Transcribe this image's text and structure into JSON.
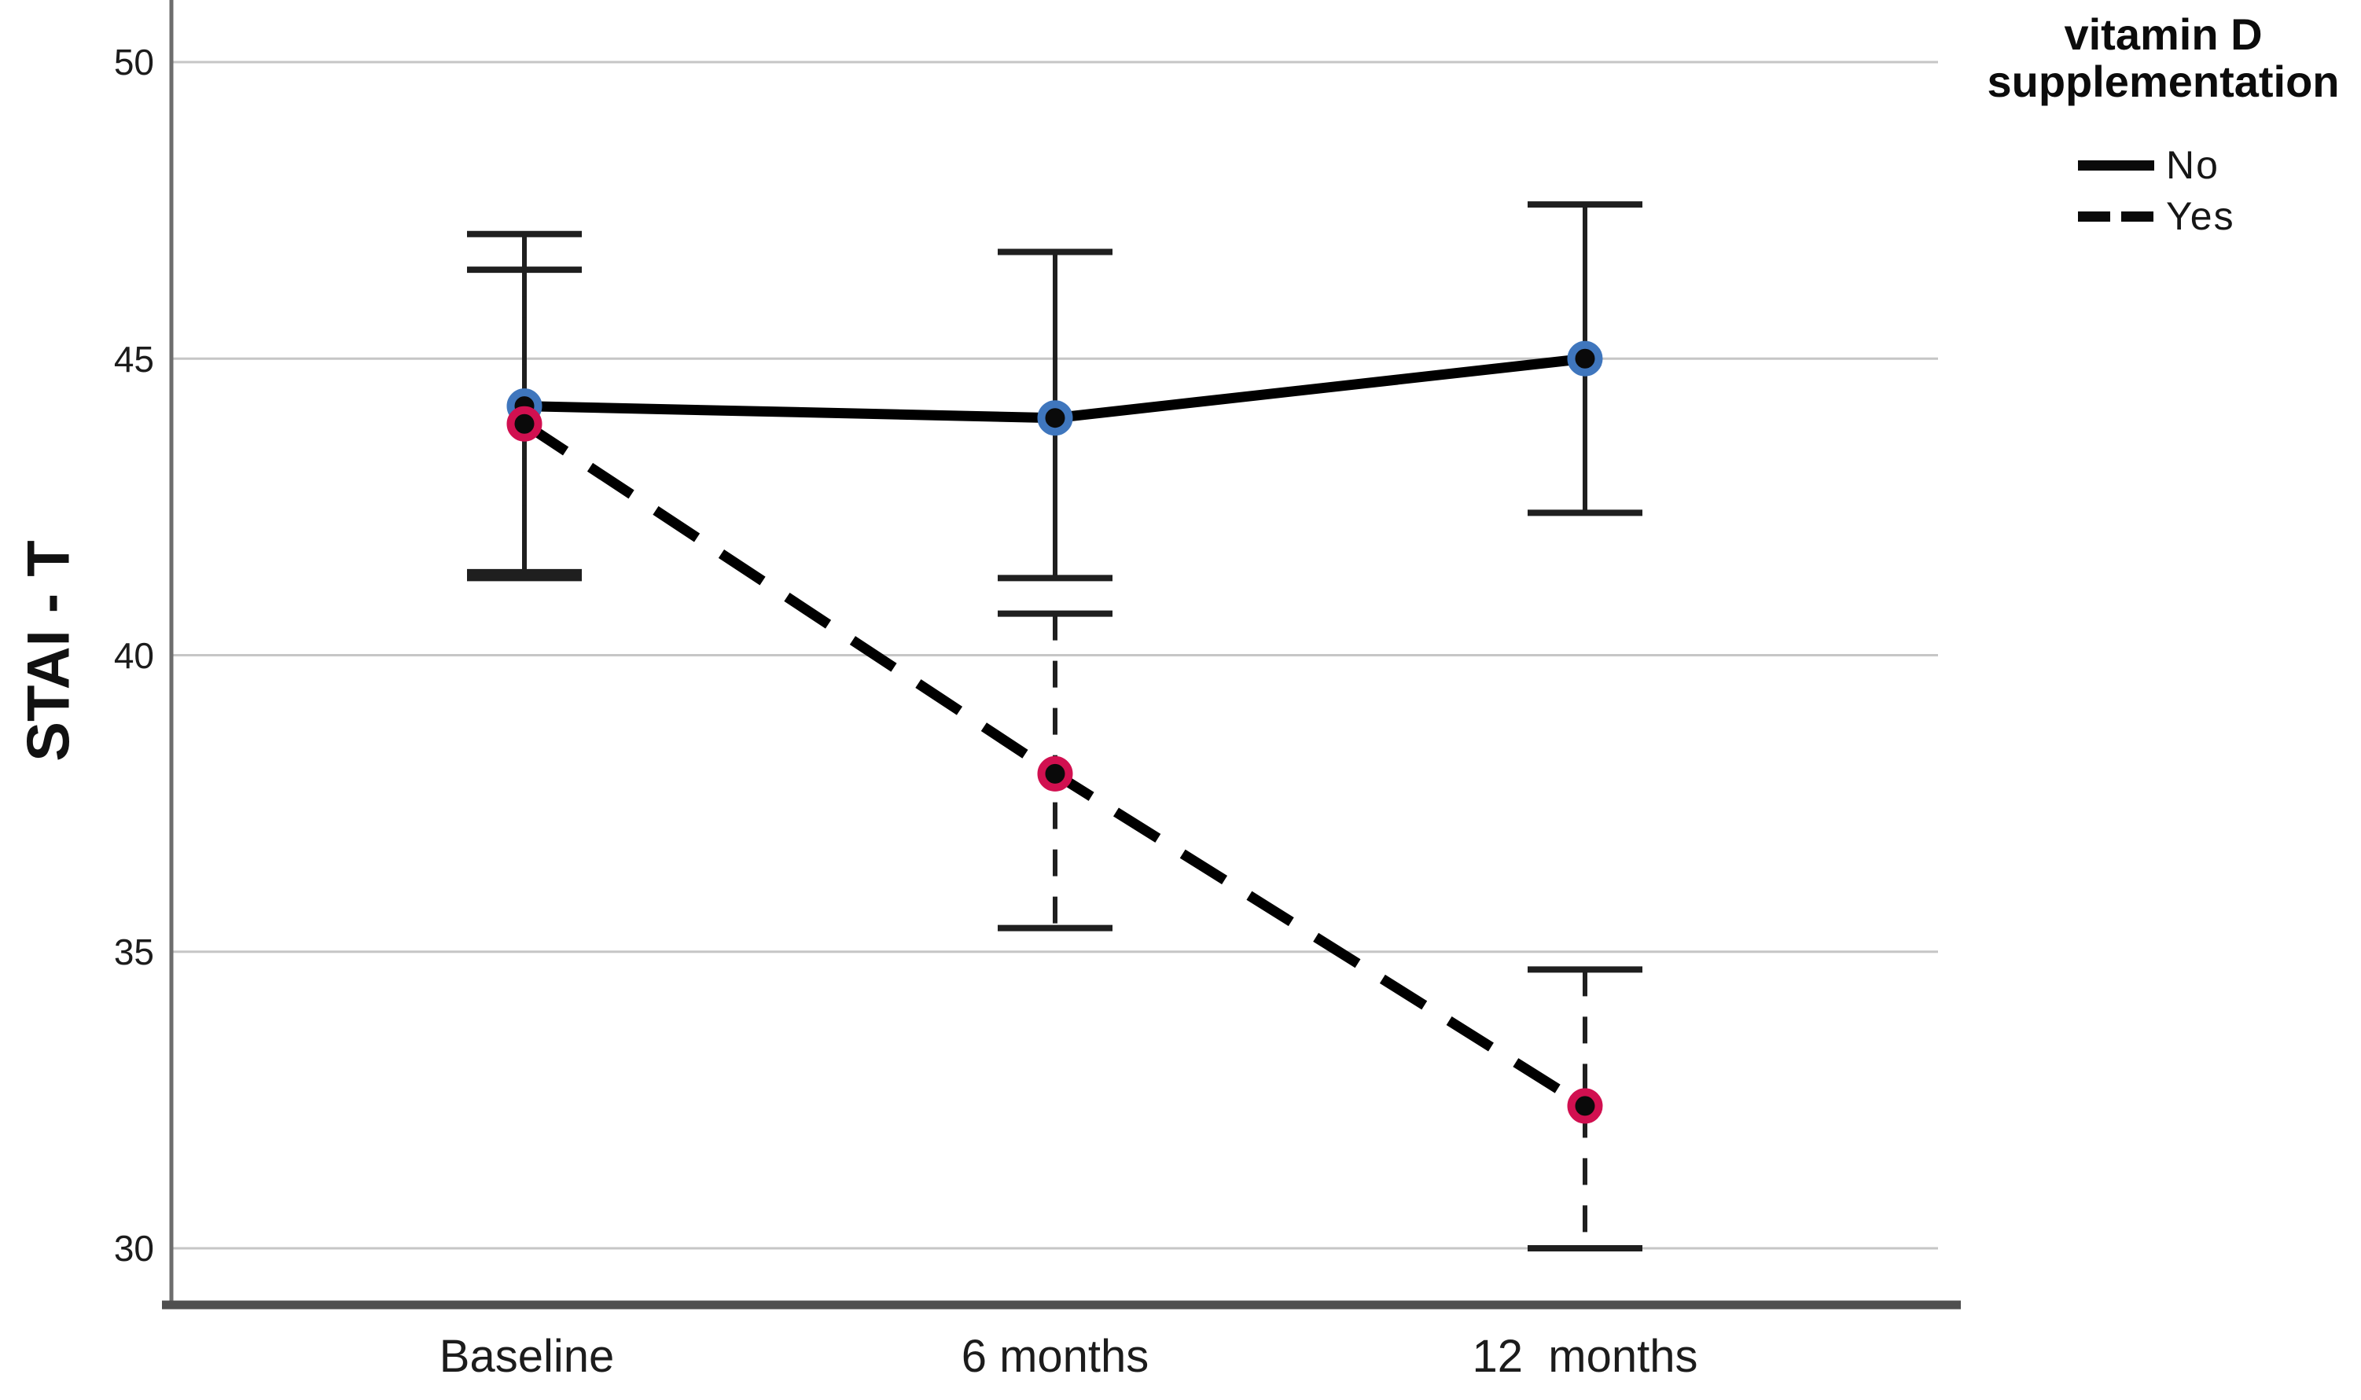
{
  "chart_data": {
    "type": "line",
    "title": "",
    "xlabel": "",
    "ylabel": "STAI - T",
    "categories": [
      "Baseline",
      "6 months",
      "12  months"
    ],
    "yticks": [
      30,
      35,
      40,
      45,
      50
    ],
    "ylim": [
      29,
      51
    ],
    "grid": "horizontal-gridlines-on",
    "legend_position": "top-right-outside",
    "legend_title": "vitamin D supplementation",
    "error_bars": "shown (vertical, capped)",
    "series": [
      {
        "name": "No",
        "line_style": "solid",
        "line_color": "#000000",
        "marker": "circle-black-with-ring",
        "marker_ring_color": "#3f76bd",
        "values": [
          44.2,
          44.0,
          45.0
        ],
        "ci_low": [
          41.3,
          41.3,
          42.4
        ],
        "ci_high": [
          47.1,
          46.8,
          47.6
        ]
      },
      {
        "name": "Yes",
        "line_style": "dashed",
        "line_color": "#000000",
        "marker": "circle-black-with-ring",
        "marker_ring_color": "#d11050",
        "values": [
          43.9,
          38.0,
          32.4
        ],
        "ci_low": [
          41.4,
          35.4,
          30.0
        ],
        "ci_high": [
          46.5,
          40.7,
          34.7
        ]
      }
    ]
  },
  "legend": {
    "title_line1": "vitamin D",
    "title_line2": "supplementation",
    "items": [
      {
        "label": "No",
        "swatch": "solid-line"
      },
      {
        "label": "Yes",
        "swatch": "dashed-line"
      }
    ]
  },
  "colors": {
    "gridline": "#c6c6c6",
    "y_axis_line": "#6d6d6d",
    "x_axis_line": "#4f4f4f",
    "error_bar": "#1f1f1f",
    "series_line": "#000000",
    "ring_no": "#3f76bd",
    "ring_yes": "#d11050"
  }
}
